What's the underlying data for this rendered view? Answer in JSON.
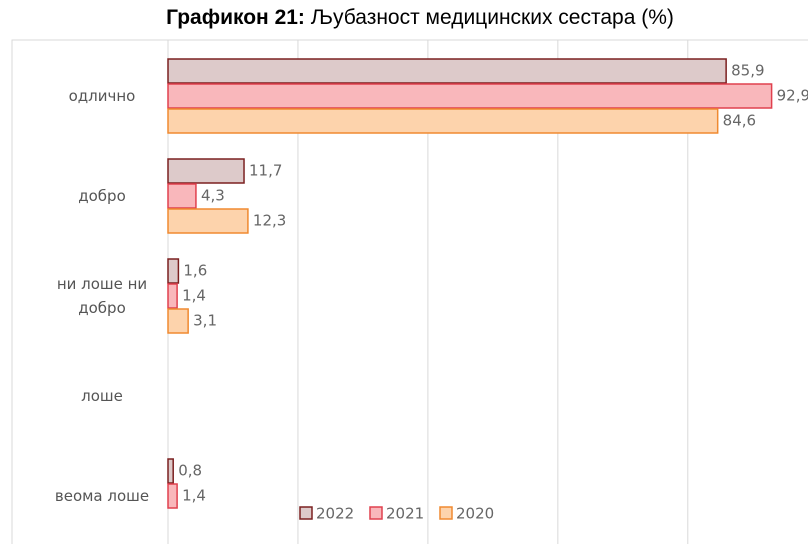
{
  "chart_data": {
    "type": "bar",
    "orientation": "horizontal",
    "title_number": "Графикон 21:",
    "title": "Љубазност медицинских сестара (%)",
    "categories": [
      "одлично",
      "добро",
      "ни лоше ни добро",
      "лоше",
      "веома лоше"
    ],
    "series": [
      {
        "name": "2022",
        "color": "#ddcaca",
        "stroke": "#7b2020",
        "values": [
          85.9,
          11.7,
          1.6,
          null,
          0.8
        ],
        "value_labels": [
          "85,9",
          "11,7",
          "1,6",
          null,
          "0,8"
        ]
      },
      {
        "name": "2021",
        "color": "#f9b7bb",
        "stroke": "#e0404e",
        "values": [
          92.9,
          4.3,
          1.4,
          null,
          1.4
        ],
        "value_labels": [
          "92,9",
          "4,3",
          "1,4",
          null,
          "1,4"
        ]
      },
      {
        "name": "2020",
        "color": "#fdd3ac",
        "stroke": "#f08a30",
        "values": [
          84.6,
          12.3,
          3.1,
          null,
          null
        ],
        "value_labels": [
          "84,6",
          "12,3",
          "3,1",
          null,
          null
        ]
      }
    ],
    "xlim": [
      0,
      98.5
    ],
    "xticks": [
      0,
      20,
      40,
      60,
      80
    ],
    "grid": true,
    "legend": "bottom"
  }
}
